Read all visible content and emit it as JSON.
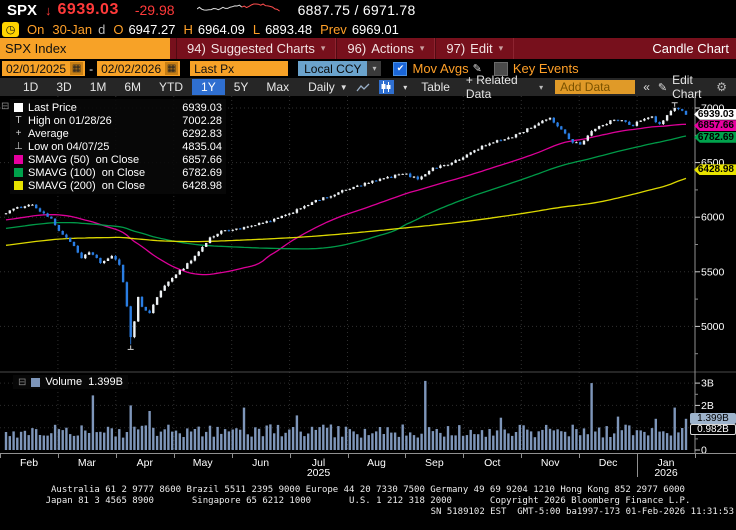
{
  "header": {
    "ticker": "SPX",
    "arrow": "↓",
    "last": "6939.03",
    "change": "-29.98",
    "range": "6887.75 / 6971.78",
    "session": {
      "on_label": "On",
      "date": "30-Jan",
      "d": "d",
      "o_label": "O",
      "open": "6947.27",
      "h_label": "H",
      "high": "6964.09",
      "l_label": "L",
      "low": "6893.48",
      "prev_label": "Prev",
      "prev": "6969.01"
    }
  },
  "menubar": {
    "security": "SPX Index",
    "items": [
      {
        "num": "94)",
        "label": "Suggested Charts",
        "caret": true
      },
      {
        "num": "96)",
        "label": "Actions",
        "caret": true
      },
      {
        "num": "97)",
        "label": "Edit",
        "caret": true
      }
    ],
    "right": "Candle Chart"
  },
  "controls": {
    "date_from": "02/01/2025",
    "date_to": "02/02/2026",
    "px_type": "Last Px",
    "currency": "Local CCY",
    "mov_avgs": "Mov Avgs",
    "key_events": "Key Events",
    "mov_avgs_checked": true,
    "key_events_checked": false
  },
  "toolbar": {
    "ranges": [
      "1D",
      "3D",
      "1M",
      "6M",
      "YTD",
      "1Y",
      "5Y",
      "Max"
    ],
    "selected_range": "1Y",
    "period": "Daily",
    "table": "Table",
    "related": "+ Related Data",
    "add_data_placeholder": "Add Data",
    "collapse": "«",
    "edit_chart": "Edit Chart"
  },
  "icons": {
    "gear": "⚙",
    "pencil": "✎",
    "calendar": "▦",
    "clock": "◷",
    "check": "✔",
    "caret_down": "▾",
    "dropdown": "▼",
    "expander": "⊟"
  },
  "legend": {
    "rows": [
      {
        "swatch": "#ffffff",
        "label": "Last Price",
        "value": "6939.03"
      },
      {
        "glyph": "T",
        "label": "High on 01/28/26",
        "value": "7002.28"
      },
      {
        "glyph": "+",
        "label": "Average",
        "value": "6292.83"
      },
      {
        "glyph": "⊥",
        "label": "Low on 04/07/25",
        "value": "4835.04"
      },
      {
        "swatch": "#e800a0",
        "label": "SMAVG (50)  on Close",
        "value": "6857.66"
      },
      {
        "swatch": "#00a24c",
        "label": "SMAVG (100)  on Close",
        "value": "6782.69"
      },
      {
        "swatch": "#e8e400",
        "label": "SMAVG (200)  on Close",
        "value": "6428.98"
      }
    ]
  },
  "price_tags": [
    {
      "value": 6939.03,
      "text": "6939.03",
      "bg": "#ffffff"
    },
    {
      "value": 6857.66,
      "text": "6857.66",
      "bg": "#e800a0"
    },
    {
      "value": 6782.69,
      "text": "6782.69",
      "bg": "#00a24c"
    },
    {
      "value": 6428.98,
      "text": "6428.98",
      "bg": "#e8e400"
    }
  ],
  "volume": {
    "legend_label": "Volume",
    "legend_value": "1.399B",
    "tag_last": {
      "text": "1.399B",
      "value": 1.399
    },
    "tag_axis": {
      "text": "0.982B",
      "value": 0.982
    }
  },
  "footer": {
    "line1": "Australia 61 2 9777 8600 Brazil 5511 2395 9000 Europe 44 20 7330 7500 Germany 49 69 9204 1210 Hong Kong 852 2977 6000",
    "line2": "Japan 81 3 4565 8900       Singapore 65 6212 1000       U.S. 1 212 318 2000       Copyright 2026 Bloomberg Finance L.P.",
    "line3": "SN 5189102 EST  GMT-5:00 ba1997-173 01-Feb-2026 11:31:53"
  },
  "chart_data": {
    "type": "candlestick",
    "title": "SPX Index 1Y Daily Candle Chart",
    "x_months": [
      "Feb",
      "Mar",
      "Apr",
      "May",
      "Jun",
      "Jul",
      "Aug",
      "Sep",
      "Oct",
      "Nov",
      "Dec",
      "Jan"
    ],
    "year_start": "2025",
    "year_end": "2026",
    "ylim": [
      4800,
      7100
    ],
    "y_ticks": [
      7000,
      6500,
      6000,
      5500,
      5000
    ],
    "y_minor_ticks": [
      6750,
      6250,
      5750,
      5250,
      4750
    ],
    "candle_up_color": "#eef2f5",
    "candle_down_color": "#2a7de2",
    "last_close": 6939.03,
    "high": {
      "date": "01/28/26",
      "value": 7002.28,
      "t": 0.985
    },
    "low": {
      "date": "04/07/25",
      "value": 4835.04,
      "t": 0.183
    },
    "average": 6292.83,
    "price_anchors": [
      [
        0,
        6045
      ],
      [
        0.02,
        6090
      ],
      [
        0.035,
        6125
      ],
      [
        0.05,
        6060
      ],
      [
        0.065,
        5990
      ],
      [
        0.08,
        5860
      ],
      [
        0.095,
        5780
      ],
      [
        0.11,
        5620
      ],
      [
        0.125,
        5680
      ],
      [
        0.14,
        5580
      ],
      [
        0.155,
        5640
      ],
      [
        0.168,
        5560
      ],
      [
        0.176,
        5280
      ],
      [
        0.183,
        4900
      ],
      [
        0.188,
        4990
      ],
      [
        0.193,
        5280
      ],
      [
        0.2,
        5180
      ],
      [
        0.21,
        5120
      ],
      [
        0.225,
        5290
      ],
      [
        0.24,
        5430
      ],
      [
        0.26,
        5530
      ],
      [
        0.28,
        5660
      ],
      [
        0.3,
        5810
      ],
      [
        0.32,
        5880
      ],
      [
        0.35,
        5900
      ],
      [
        0.38,
        5950
      ],
      [
        0.41,
        6010
      ],
      [
        0.44,
        6110
      ],
      [
        0.47,
        6180
      ],
      [
        0.5,
        6250
      ],
      [
        0.53,
        6310
      ],
      [
        0.56,
        6360
      ],
      [
        0.585,
        6400
      ],
      [
        0.605,
        6350
      ],
      [
        0.625,
        6440
      ],
      [
        0.645,
        6480
      ],
      [
        0.665,
        6520
      ],
      [
        0.685,
        6600
      ],
      [
        0.705,
        6660
      ],
      [
        0.725,
        6700
      ],
      [
        0.745,
        6740
      ],
      [
        0.765,
        6800
      ],
      [
        0.785,
        6870
      ],
      [
        0.8,
        6900
      ],
      [
        0.815,
        6820
      ],
      [
        0.83,
        6700
      ],
      [
        0.845,
        6670
      ],
      [
        0.86,
        6780
      ],
      [
        0.875,
        6840
      ],
      [
        0.89,
        6880
      ],
      [
        0.905,
        6900
      ],
      [
        0.92,
        6840
      ],
      [
        0.935,
        6890
      ],
      [
        0.95,
        6920
      ],
      [
        0.958,
        6840
      ],
      [
        0.968,
        6900
      ],
      [
        0.978,
        6970
      ],
      [
        0.985,
        7000
      ],
      [
        0.993,
        6975
      ],
      [
        1,
        6939.03
      ]
    ],
    "smavg": [
      {
        "window": 50,
        "color": "#e800a0",
        "value": 6857.66
      },
      {
        "window": 100,
        "color": "#00a24c",
        "value": 6782.69
      },
      {
        "window": 200,
        "color": "#e8e400",
        "value": 6428.98
      }
    ],
    "volume_panel": {
      "unit": "B",
      "ticks": [
        [
          3,
          "3B"
        ],
        [
          2,
          "2B"
        ],
        [
          0,
          "0"
        ]
      ],
      "minor_ticks": [
        0.5,
        1,
        1.5,
        2.5
      ],
      "bar_color": "#7e96ba",
      "base_range": [
        0.55,
        1.15
      ],
      "last": 1.399,
      "spikes": [
        [
          0.128,
          2.45
        ],
        [
          0.185,
          2.0
        ],
        [
          0.21,
          1.75
        ],
        [
          0.352,
          1.9
        ],
        [
          0.43,
          1.55
        ],
        [
          0.618,
          3.1
        ],
        [
          0.73,
          1.45
        ],
        [
          0.862,
          3.0
        ],
        [
          0.9,
          1.5
        ],
        [
          0.955,
          1.4
        ],
        [
          0.985,
          1.9
        ]
      ]
    }
  }
}
